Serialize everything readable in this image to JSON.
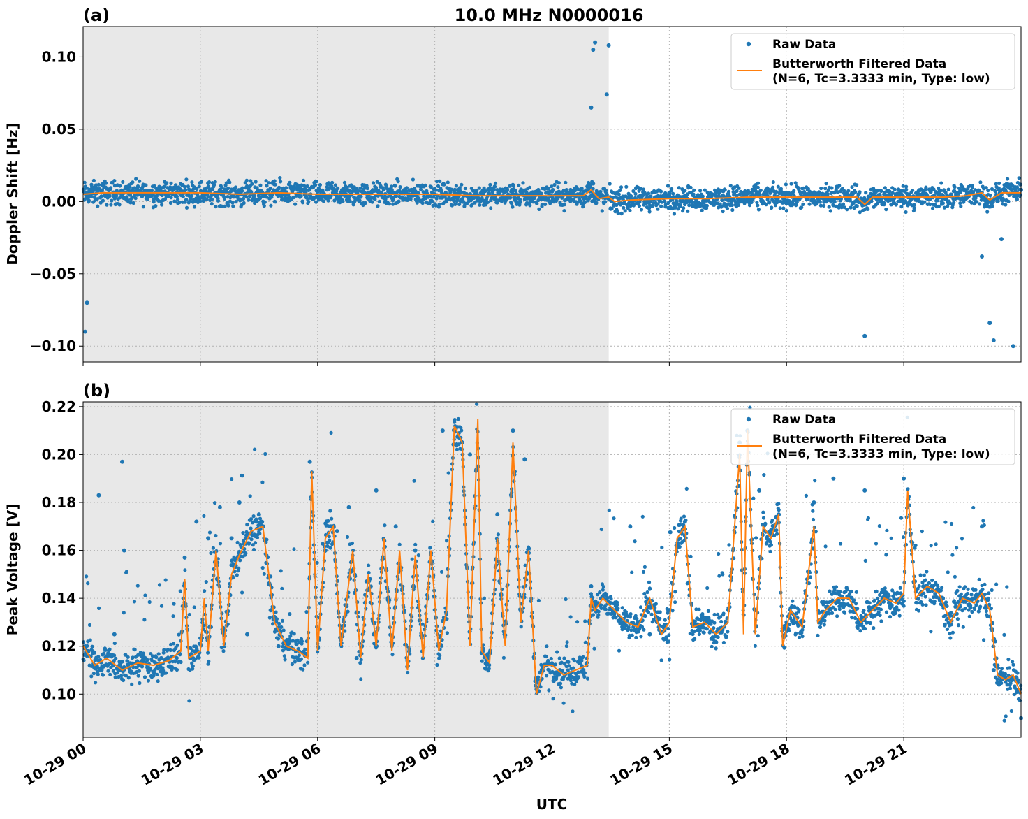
{
  "figure": {
    "title": "10.0 MHz N0000016",
    "x_axis_label": "UTC",
    "colors": {
      "raw": "#1f77b4",
      "filtered": "#ff7f0e",
      "shade": "#e8e8e8",
      "grid": "#b0b0b0"
    }
  },
  "legend": {
    "raw_label": "Raw Data",
    "filtered_label_line1": "Butterworth Filtered Data",
    "filtered_label_line2": "(N=6, Tc=3.3333 min, Type: low)"
  },
  "chart_data": [
    {
      "panel_label": "(a)",
      "type": "scatter",
      "ylabel": "Doppler Shift [Hz]",
      "xlim_hours": [
        0,
        24
      ],
      "ylim": [
        -0.111,
        0.121
      ],
      "yticks": [
        0.1,
        0.05,
        0.0,
        -0.05,
        -0.1
      ],
      "ytick_labels": [
        "0.10",
        "0.05",
        "0.00",
        "−0.05",
        "−0.10"
      ],
      "xticks_hours": [
        0,
        3,
        6,
        9,
        12,
        15,
        18,
        21
      ],
      "xtick_labels": [
        "10-29 00",
        "10-29 03",
        "10-29 06",
        "10-29 09",
        "10-29 12",
        "10-29 15",
        "10-29 18",
        "10-29 21"
      ],
      "shaded_span_hours": [
        0,
        13.45
      ],
      "grid": true,
      "legend_position": "top-right",
      "series": [
        {
          "name": "Raw Data",
          "kind": "points",
          "x_hours": [
            0.05,
            0.1,
            0.3,
            0.5,
            0.8,
            1.0,
            1.5,
            2.0,
            2.5,
            3.0,
            3.5,
            4.0,
            4.5,
            5.0,
            5.5,
            6.0,
            6.5,
            7.0,
            7.5,
            8.0,
            8.5,
            9.0,
            9.5,
            10.0,
            10.5,
            11.0,
            11.5,
            12.0,
            12.5,
            13.0,
            13.05,
            13.1,
            13.4,
            13.45,
            13.5,
            14.0,
            14.5,
            15.0,
            15.5,
            16.0,
            16.5,
            17.0,
            17.5,
            18.0,
            18.5,
            19.0,
            19.5,
            20.0,
            20.5,
            21.0,
            21.5,
            22.0,
            22.5,
            23.0,
            23.2,
            23.3,
            23.5,
            23.8,
            24.0
          ],
          "y": [
            -0.09,
            -0.07,
            0.008,
            0.012,
            0.006,
            0.004,
            0.009,
            0.005,
            0.007,
            0.003,
            0.008,
            0.006,
            0.004,
            0.009,
            0.005,
            0.007,
            0.003,
            0.006,
            0.008,
            0.004,
            0.007,
            0.005,
            0.006,
            0.003,
            0.008,
            0.005,
            0.004,
            0.007,
            0.006,
            0.065,
            0.105,
            0.11,
            0.074,
            0.108,
            -0.005,
            0.004,
            0.002,
            0.006,
            0.001,
            0.003,
            0.005,
            0.002,
            0.004,
            0.006,
            0.003,
            0.002,
            0.004,
            -0.093,
            0.005,
            0.003,
            0.006,
            0.004,
            0.002,
            -0.038,
            -0.084,
            -0.096,
            -0.026,
            -0.1,
            0.008
          ]
        },
        {
          "name": "Butterworth Filtered Data",
          "kind": "line",
          "x_hours": [
            0,
            0.5,
            1,
            2,
            3,
            4,
            5,
            6,
            7,
            8,
            9,
            10,
            11,
            12,
            12.8,
            13.0,
            13.2,
            13.45,
            13.6,
            14,
            15,
            16,
            17,
            18,
            19,
            19.8,
            20.0,
            20.2,
            21,
            22,
            22.6,
            22.8,
            23.0,
            23.2,
            23.5,
            24
          ],
          "y": [
            0.005,
            0.006,
            0.006,
            0.006,
            0.006,
            0.005,
            0.006,
            0.005,
            0.005,
            0.005,
            0.005,
            0.004,
            0.004,
            0.004,
            0.004,
            0.008,
            0.002,
            0.003,
            0.0,
            0.001,
            0.002,
            0.002,
            0.003,
            0.003,
            0.003,
            0.003,
            -0.002,
            0.003,
            0.003,
            0.003,
            0.004,
            0.005,
            0.006,
            0.001,
            0.006,
            0.006
          ]
        }
      ]
    },
    {
      "panel_label": "(b)",
      "type": "scatter",
      "ylabel": "Peak Voltage [V]",
      "xlim_hours": [
        0,
        24
      ],
      "ylim": [
        0.082,
        0.222
      ],
      "yticks": [
        0.1,
        0.12,
        0.14,
        0.16,
        0.18,
        0.2,
        0.22
      ],
      "ytick_labels": [
        "0.10",
        "0.12",
        "0.14",
        "0.16",
        "0.18",
        "0.20",
        "0.22"
      ],
      "xticks_hours": [
        0,
        3,
        6,
        9,
        12,
        15,
        18,
        21
      ],
      "xtick_labels": [
        "10-29 00",
        "10-29 03",
        "10-29 06",
        "10-29 09",
        "10-29 12",
        "10-29 15",
        "10-29 18",
        "10-29 21"
      ],
      "shaded_span_hours": [
        0,
        13.45
      ],
      "grid": true,
      "legend_position": "top-right",
      "series": [
        {
          "name": "Raw Data",
          "kind": "points",
          "x_hours": [
            0.1,
            0.3,
            0.4,
            0.8,
            1.0,
            1.05,
            1.5,
            2.0,
            2.6,
            2.9,
            3.2,
            3.5,
            3.8,
            4.0,
            4.2,
            4.5,
            4.8,
            5.0,
            5.8,
            6.2,
            6.5,
            6.8,
            7.0,
            7.5,
            7.8,
            8.0,
            8.5,
            9.2,
            9.7,
            9.9,
            10.1,
            10.6,
            11.0,
            11.3,
            11.6,
            12.2,
            12.8,
            13.0,
            13.5,
            14.0,
            14.5,
            15.0,
            15.4,
            16.0,
            16.8,
            17.0,
            17.3,
            17.8,
            18.0,
            18.7,
            19.2,
            20.0,
            20.5,
            21.0,
            21.5,
            22.0,
            22.5,
            23.0,
            23.3,
            23.6,
            24.0
          ],
          "y": [
            0.118,
            0.112,
            0.183,
            0.125,
            0.197,
            0.16,
            0.113,
            0.115,
            0.157,
            0.172,
            0.165,
            0.178,
            0.165,
            0.18,
            0.125,
            0.175,
            0.135,
            0.12,
            0.197,
            0.16,
            0.168,
            0.178,
            0.115,
            0.185,
            0.14,
            0.17,
            0.16,
            0.21,
            0.205,
            0.2,
            0.195,
            0.175,
            0.21,
            0.198,
            0.105,
            0.11,
            0.11,
            0.145,
            0.138,
            0.17,
            0.125,
            0.135,
            0.172,
            0.13,
            0.205,
            0.21,
            0.185,
            0.175,
            0.13,
            0.18,
            0.19,
            0.185,
            0.14,
            0.19,
            0.145,
            0.14,
            0.135,
            0.17,
            0.11,
            0.107,
            0.09
          ]
        },
        {
          "name": "Butterworth Filtered Data",
          "kind": "line",
          "x_hours": [
            0,
            0.3,
            0.6,
            1.0,
            1.4,
            1.8,
            2.2,
            2.5,
            2.6,
            2.7,
            3.0,
            3.1,
            3.2,
            3.4,
            3.6,
            3.8,
            4.0,
            4.3,
            4.6,
            4.9,
            5.2,
            5.5,
            5.75,
            5.85,
            6.0,
            6.2,
            6.4,
            6.6,
            6.9,
            7.1,
            7.3,
            7.5,
            7.7,
            7.9,
            8.1,
            8.3,
            8.5,
            8.7,
            8.9,
            9.1,
            9.3,
            9.5,
            9.7,
            9.9,
            10.1,
            10.2,
            10.4,
            10.6,
            10.8,
            11.0,
            11.2,
            11.4,
            11.6,
            11.8,
            12.0,
            12.3,
            12.6,
            12.9,
            13.0,
            13.1,
            13.3,
            13.6,
            13.9,
            14.2,
            14.5,
            14.8,
            15.0,
            15.2,
            15.4,
            15.6,
            15.9,
            16.2,
            16.5,
            16.8,
            16.9,
            17.0,
            17.2,
            17.4,
            17.6,
            17.8,
            17.9,
            18.1,
            18.4,
            18.7,
            18.8,
            19.0,
            19.3,
            19.6,
            19.9,
            20.2,
            20.5,
            20.8,
            21.0,
            21.1,
            21.3,
            21.6,
            21.9,
            22.2,
            22.5,
            22.8,
            23.0,
            23.2,
            23.4,
            23.6,
            23.8,
            24.0
          ],
          "y": [
            0.12,
            0.112,
            0.115,
            0.11,
            0.113,
            0.112,
            0.114,
            0.118,
            0.148,
            0.115,
            0.118,
            0.14,
            0.118,
            0.16,
            0.12,
            0.15,
            0.158,
            0.168,
            0.17,
            0.13,
            0.12,
            0.118,
            0.115,
            0.193,
            0.118,
            0.165,
            0.17,
            0.12,
            0.16,
            0.115,
            0.15,
            0.12,
            0.165,
            0.118,
            0.16,
            0.11,
            0.158,
            0.115,
            0.16,
            0.118,
            0.135,
            0.212,
            0.205,
            0.12,
            0.215,
            0.118,
            0.113,
            0.165,
            0.12,
            0.205,
            0.13,
            0.16,
            0.1,
            0.112,
            0.112,
            0.108,
            0.11,
            0.112,
            0.14,
            0.135,
            0.14,
            0.135,
            0.13,
            0.128,
            0.14,
            0.125,
            0.13,
            0.165,
            0.17,
            0.128,
            0.13,
            0.125,
            0.13,
            0.2,
            0.125,
            0.21,
            0.125,
            0.17,
            0.165,
            0.175,
            0.12,
            0.135,
            0.128,
            0.17,
            0.13,
            0.135,
            0.14,
            0.14,
            0.13,
            0.135,
            0.14,
            0.138,
            0.142,
            0.185,
            0.14,
            0.145,
            0.142,
            0.13,
            0.14,
            0.138,
            0.142,
            0.135,
            0.108,
            0.106,
            0.108,
            0.1
          ]
        }
      ]
    }
  ]
}
